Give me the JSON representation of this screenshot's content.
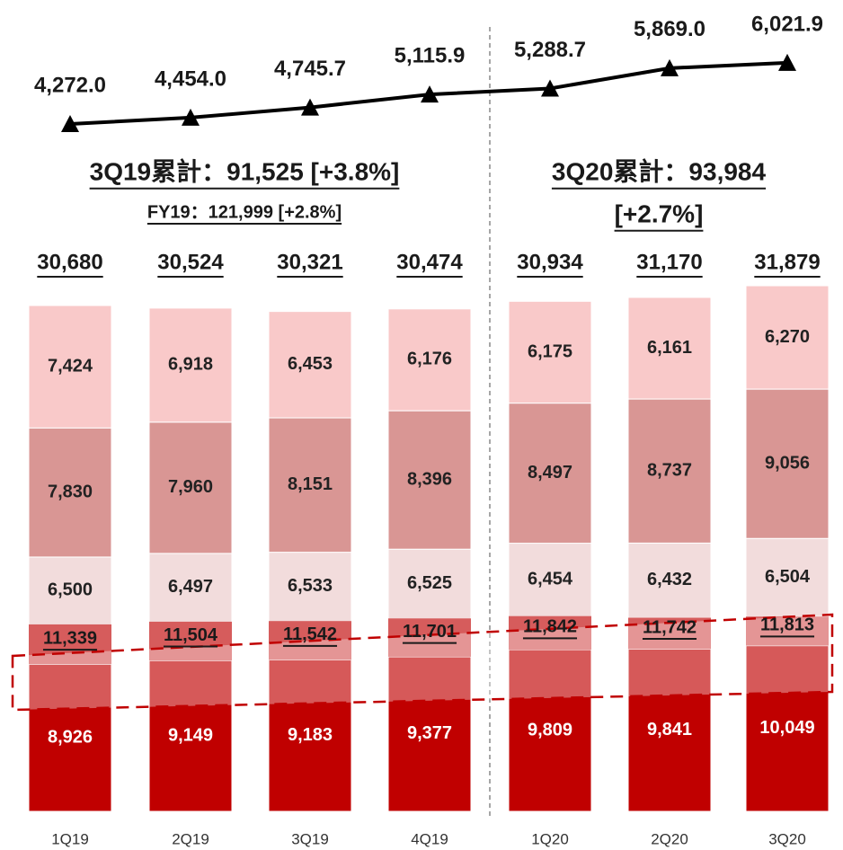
{
  "chart_data": [
    {
      "type": "line",
      "color": "#000000",
      "values": [
        4272.0,
        4454.0,
        4745.7,
        5115.9,
        5288.7,
        5869.0,
        6021.9
      ],
      "value_labels": [
        "4,272.0",
        "4,454.0",
        "4,745.7",
        "5,115.9",
        "5,288.7",
        "5,869.0",
        "6,021.9"
      ]
    },
    {
      "type": "bar",
      "categories": [
        "1Q19",
        "2Q19",
        "3Q19",
        "4Q19",
        "1Q20",
        "2Q20",
        "3Q20"
      ],
      "series": [
        {
          "color": "#c00000",
          "values": [
            8926,
            9149,
            9183,
            9377,
            9809,
            9841,
            10049
          ],
          "value_labels": [
            "8,926",
            "9,149",
            "9,183",
            "9,377",
            "9,809",
            "9,841",
            "10,049"
          ]
        },
        {
          "color": "#f2dcdc",
          "values": [
            6500,
            6497,
            6533,
            6525,
            6454,
            6432,
            6504
          ],
          "value_labels": [
            "6,500",
            "6,497",
            "6,533",
            "6,525",
            "6,454",
            "6,432",
            "6,504"
          ]
        },
        {
          "color": "#d99694",
          "values": [
            7830,
            7960,
            8151,
            8396,
            8497,
            8737,
            9056
          ],
          "value_labels": [
            "7,830",
            "7,960",
            "8,151",
            "8,396",
            "8,497",
            "8,737",
            "9,056"
          ]
        },
        {
          "color": "#f9c9c9",
          "values": [
            7424,
            6918,
            6453,
            6176,
            6175,
            6161,
            6270
          ],
          "value_labels": [
            "7,424",
            "6,918",
            "6,453",
            "6,176",
            "6,175",
            "6,161",
            "6,270"
          ]
        }
      ],
      "highlight": {
        "color": "#d65c5c",
        "values": [
          11339,
          11504,
          11542,
          11701,
          11842,
          11742,
          11813
        ],
        "value_labels": [
          "11,339",
          "11,504",
          "11,542",
          "11,701",
          "11,842",
          "11,742",
          "11,813"
        ]
      },
      "totals": {
        "values": [
          30680,
          30524,
          30321,
          30474,
          30934,
          31170,
          31879
        ],
        "value_labels": [
          "30,680",
          "30,524",
          "30,321",
          "30,474",
          "30,934",
          "31,170",
          "31,879"
        ]
      },
      "annotations": [
        "3Q19累計：91,525 [+3.8%]",
        "FY19：121,999 [+2.8%]",
        "3Q20累計：93,984",
        "[+2.7%]"
      ]
    }
  ]
}
